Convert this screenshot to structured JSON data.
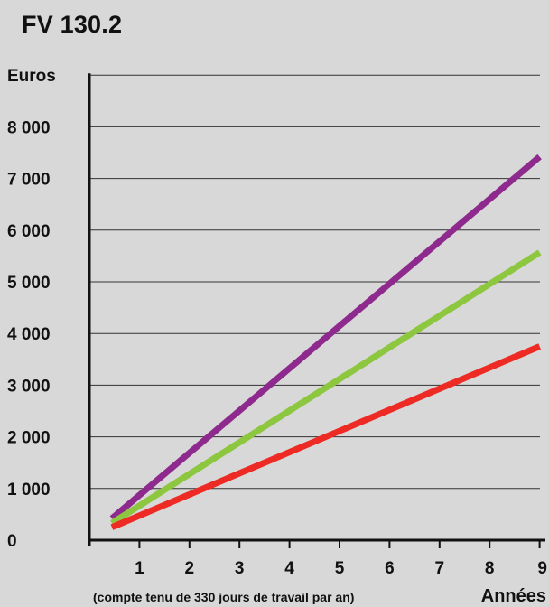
{
  "chart_data": {
    "type": "line",
    "title": "FV 130.2",
    "ylabel": "Euros",
    "xlabel": "Années",
    "note": "(compte tenu de 330 jours de travail par an)",
    "xlim": [
      0,
      9
    ],
    "ylim": [
      0,
      8000
    ],
    "x_ticks": [
      1,
      2,
      3,
      4,
      5,
      6,
      7,
      8,
      9
    ],
    "y_ticks": [
      0,
      1000,
      2000,
      3000,
      4000,
      5000,
      6000,
      7000,
      8000
    ],
    "y_tick_labels": [
      "0",
      "1 000",
      "2 000",
      "3 000",
      "4 000",
      "5 000",
      "6 000",
      "7 000",
      "8 000"
    ],
    "grid": "horizontal",
    "series": [
      {
        "color": "#8e2a8e",
        "x": [
          0.45,
          9.0
        ],
        "y": [
          420,
          7420
        ]
      },
      {
        "color": "#8dc63f",
        "x": [
          0.45,
          9.0
        ],
        "y": [
          330,
          5570
        ]
      },
      {
        "color": "#ee2a24",
        "x": [
          0.45,
          9.0
        ],
        "y": [
          250,
          3750
        ]
      }
    ]
  }
}
